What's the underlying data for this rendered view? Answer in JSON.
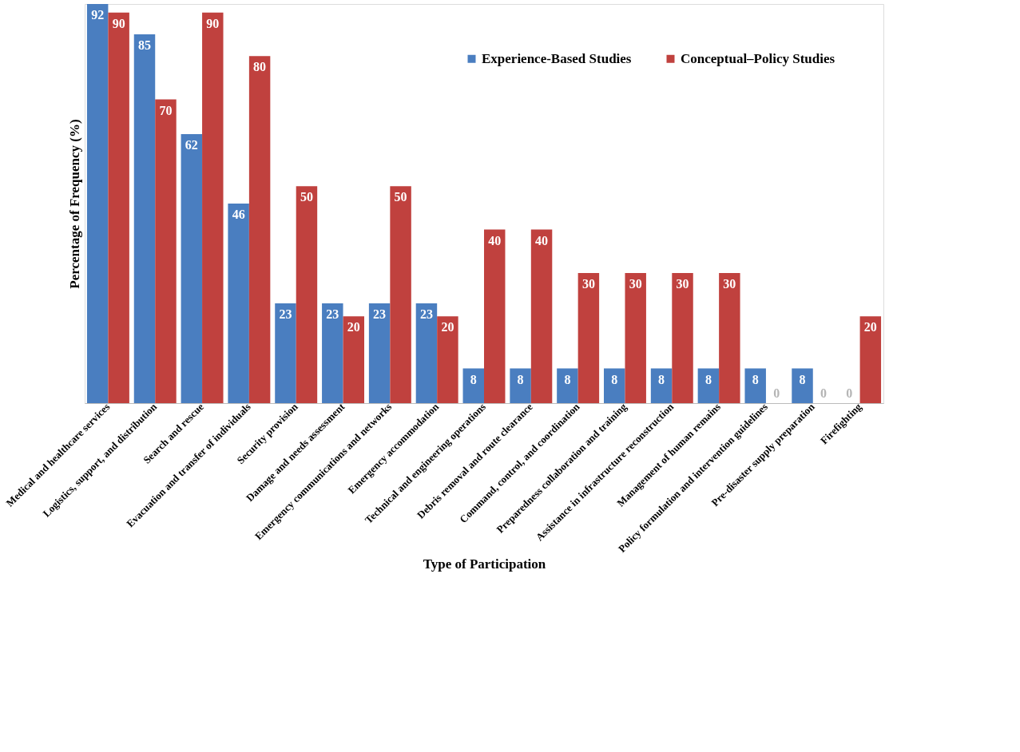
{
  "chart_data": {
    "type": "bar",
    "xlabel": "Type of Participation",
    "ylabel": "Percentage of Frequency (%)",
    "categories": [
      "Medical and healthcare services",
      "Logistics, support, and distribution",
      "Search and rescue",
      "Evacuation and transfer of individuals",
      "Security provision",
      "Damage and needs assessment",
      "Emergency communications and networks",
      "Emergency accommodation",
      "Technical and engineering operations",
      "Debris removal and route clearance",
      "Command, control, and coordination",
      "Preparedness collaboration and training",
      "Assistance in infrastructure reconstruction",
      "Management of human remains",
      "Policy formulation and intervention guidelines",
      "Pre-disaster supply preparation",
      "Firefighting"
    ],
    "series": [
      {
        "name": "Experience-Based Studies",
        "color": "#4a7ec0",
        "values": [
          92,
          85,
          62,
          46,
          23,
          23,
          23,
          23,
          8,
          8,
          8,
          8,
          8,
          8,
          8,
          8,
          0
        ]
      },
      {
        "name": "Conceptual–Policy Studies",
        "color": "#c0413e",
        "values": [
          90,
          70,
          90,
          80,
          50,
          20,
          50,
          20,
          40,
          40,
          30,
          30,
          30,
          30,
          0,
          0,
          20
        ]
      }
    ],
    "data_labels": true,
    "legend": "top right",
    "grid": false,
    "tick_labels": "x"
  }
}
